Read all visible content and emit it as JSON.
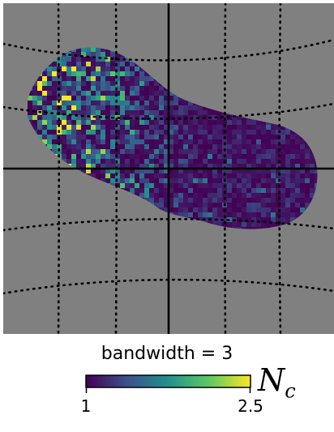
{
  "chart_data": {
    "type": "heatmap",
    "title": "",
    "xlabel": "",
    "ylabel": "",
    "grid": true,
    "grid_style": "dotted",
    "background_color": "#808080",
    "colormap": "viridis",
    "colormap_stops": [
      "#440154",
      "#3b528b",
      "#21918c",
      "#5ec962",
      "#fde725"
    ],
    "colorbar": {
      "label": "bandwidth = 3",
      "symbol": "N",
      "symbol_subscript": "c",
      "vmin": 1,
      "vmax": 2.5,
      "tick_labels": [
        "1",
        "2.5"
      ],
      "placement": "bottom"
    }
  }
}
